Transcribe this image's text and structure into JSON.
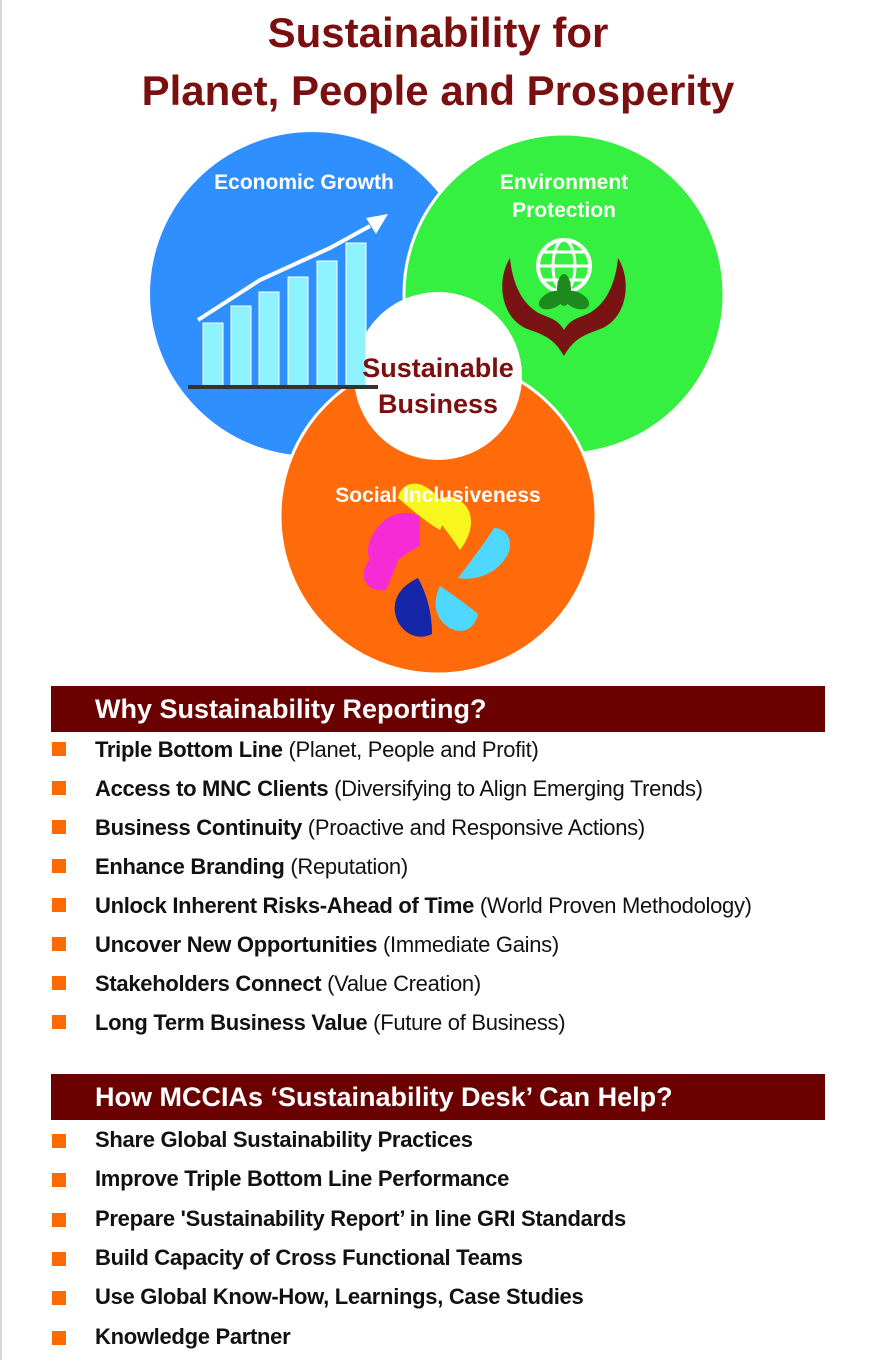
{
  "title_line1": "Sustainability for",
  "title_line2": "Planet, People and Prosperity",
  "venn": {
    "economic": "Economic Growth",
    "environment": "Environment Protection",
    "social": "Social Inclusiveness",
    "center": "Sustainable Business",
    "colors": {
      "economic": "#2f8fff",
      "environment": "#35f040",
      "social": "#ff6a0a",
      "center_text": "#7b0e0e"
    }
  },
  "why": {
    "heading": "Why Sustainability Reporting?",
    "items": [
      {
        "bold": "Triple Bottom Line",
        "rest": " (Planet, People and Profit)"
      },
      {
        "bold": "Access to MNC Clients",
        "rest": " (Diversifying to Align Emerging Trends)"
      },
      {
        "bold": "Business Continuity",
        "rest": " (Proactive and Responsive Actions)"
      },
      {
        "bold": "Enhance Branding",
        "rest": " (Reputation)"
      },
      {
        "bold": "Unlock Inherent Risks-Ahead of Time",
        "rest": " (World Proven Methodology)"
      },
      {
        "bold": "Uncover New Opportunities",
        "rest": " (Immediate Gains)"
      },
      {
        "bold": "Stakeholders Connect",
        "rest": " (Value Creation)"
      },
      {
        "bold": "Long Term Business Value",
        "rest": " (Future of Business)"
      }
    ]
  },
  "how": {
    "heading": "How MCCIAs ‘Sustainability Desk’  Can Help?",
    "items": [
      "Share Global Sustainability Practices",
      "Improve Triple Bottom Line Performance",
      "Prepare 'Sustainability Report’ in line GRI Standards",
      "Build Capacity of Cross Functional Teams",
      "Use Global Know-How, Learnings, Case Studies",
      "Knowledge Partner"
    ]
  },
  "accent_color": "#ff6a00",
  "banner_color": "#6a0000"
}
